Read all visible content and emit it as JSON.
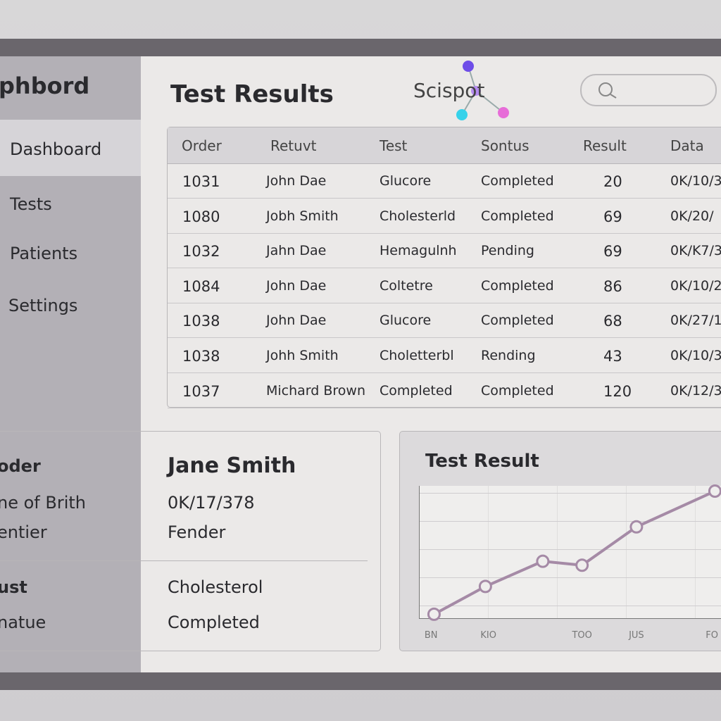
{
  "sidebar": {
    "title": "phbord",
    "items": [
      "Dashboard",
      "Tests",
      "Patients",
      "Settings"
    ]
  },
  "main": {
    "title": "Test Results",
    "logo": "Scispot"
  },
  "table": {
    "headers": [
      "Order",
      "Retuvt",
      "Test",
      "Sontus",
      "Result",
      "Data"
    ],
    "rows": [
      [
        "1031",
        "John Dae",
        "Glucore",
        "Completed",
        "20",
        "0K/10/3"
      ],
      [
        "1080",
        "Jobh Smith",
        "Cholesterld",
        "Completed",
        "69",
        "0K/20/"
      ],
      [
        "1032",
        "Jahn Dae",
        "Hemagulnh",
        "Pending",
        "69",
        "0K/K7/3"
      ],
      [
        "1084",
        "John Dae",
        "Coltetre",
        "Completed",
        "86",
        "0K/10/2"
      ],
      [
        "1038",
        "John Dae",
        "Glucore",
        "Completed",
        "68",
        "0K/27/1"
      ],
      [
        "1038",
        "Johh Smith",
        "Choletterbl",
        "Rending",
        "43",
        "0K/10/3"
      ],
      [
        "1037",
        "Michard Brown",
        "Completed",
        "Completed",
        "120",
        "0K/12/3"
      ]
    ]
  },
  "details": {
    "rows": [
      {
        "label": "oder",
        "value": "Jane Smith"
      },
      {
        "label": "ne of Brith",
        "value": "0K/17/378"
      },
      {
        "label": "entier",
        "value": "Fender"
      },
      {
        "label": "ust",
        "value": "Cholesterol"
      },
      {
        "label": "natue",
        "value": "Completed"
      }
    ]
  },
  "chart": {
    "type": "line",
    "title": "Test Result",
    "x": [
      5,
      22,
      41,
      54,
      72,
      98
    ],
    "values": [
      3,
      24,
      43,
      40,
      69,
      96
    ],
    "color": "#a58aa6",
    "xlim": [
      0,
      100
    ],
    "ylim": [
      0,
      100
    ],
    "xticks": [
      {
        "value": 4,
        "label": "BN"
      },
      {
        "value": 23,
        "label": "KIO"
      },
      {
        "value": 54,
        "label": "TOO"
      },
      {
        "value": 72,
        "label": "JUS"
      },
      {
        "value": 97,
        "label": "FO"
      }
    ]
  }
}
